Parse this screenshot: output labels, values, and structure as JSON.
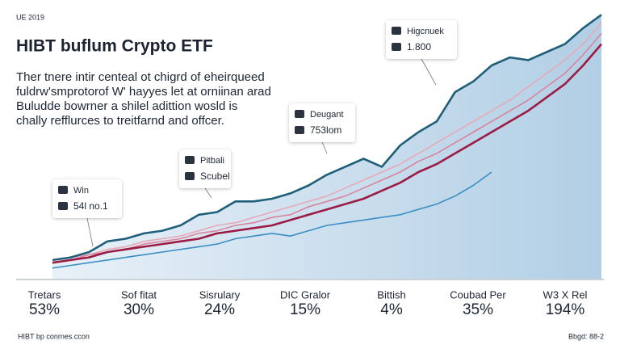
{
  "chart_data": {
    "type": "line",
    "kicker": "UE 2019",
    "title": "HIBT buflum Crypto ETF",
    "subtitle": [
      "Ther tnere intir centeal ot chigrd of eheirqueed",
      "fuldrw'smprotorof W' hayyes let at orniinan arad",
      "Buludde bowrner a shilel adittion wosld is",
      "chally refflurces to treitfarnd and offcer."
    ],
    "xlim": [
      0,
      30
    ],
    "ylim": [
      0,
      100
    ],
    "x": [
      0,
      1,
      2,
      3,
      4,
      5,
      6,
      7,
      8,
      9,
      10,
      11,
      12,
      13,
      14,
      15,
      16,
      17,
      18,
      19,
      20,
      21,
      22,
      23,
      24,
      25,
      26,
      27,
      28,
      29,
      30
    ],
    "area_color": "#b9d4e8",
    "series": [
      {
        "color": "#e7a9b8",
        "values": [
          7,
          8,
          9,
          11,
          12,
          14,
          15,
          16,
          18,
          20,
          21,
          23,
          25,
          27,
          29,
          31,
          34,
          37,
          40,
          43,
          47,
          51,
          55,
          59,
          63,
          67,
          72,
          77,
          82,
          88,
          96
        ]
      },
      {
        "color": "#d9849c",
        "values": [
          6,
          7,
          9,
          10,
          11,
          13,
          14,
          15,
          17,
          18,
          20,
          21,
          23,
          24,
          27,
          29,
          31,
          34,
          37,
          40,
          44,
          47,
          51,
          55,
          59,
          63,
          67,
          72,
          77,
          84,
          92
        ]
      },
      {
        "color": "#9b1b45",
        "values": [
          6,
          7,
          8,
          10,
          11,
          12,
          13,
          14,
          15,
          17,
          18,
          19,
          20,
          22,
          24,
          26,
          28,
          30,
          33,
          36,
          40,
          43,
          47,
          51,
          55,
          59,
          63,
          68,
          73,
          80,
          88
        ]
      },
      {
        "color": "#3a8fc4",
        "values": [
          4,
          5,
          6,
          7,
          8,
          9,
          10,
          11,
          12,
          13,
          15,
          16,
          17,
          16,
          18,
          20,
          21,
          22,
          23,
          24,
          26,
          28,
          31,
          35,
          40,
          null,
          null,
          null,
          null,
          null,
          null
        ]
      },
      {
        "color": "#1f5f7a",
        "values": [
          7,
          8,
          10,
          14,
          15,
          17,
          18,
          20,
          24,
          25,
          29,
          29,
          30,
          32,
          35,
          39,
          42,
          45,
          42,
          50,
          55,
          59,
          70,
          74,
          80,
          83,
          82,
          85,
          88,
          94,
          99
        ]
      }
    ],
    "annotations": [
      {
        "title": "Win",
        "text": "54l no.1"
      },
      {
        "title": "Pitbali",
        "text": "Scubel"
      },
      {
        "title": "Deugant",
        "text": "753lom"
      },
      {
        "title": "Higcnuek",
        "text": "1.800"
      }
    ],
    "stats": [
      {
        "label": "Tretars",
        "value": "53%"
      },
      {
        "label": "Sof fitat",
        "value": "30%"
      },
      {
        "label": "Sisrulary",
        "value": "24%"
      },
      {
        "label": "DIC Gralor",
        "value": "15%"
      },
      {
        "label": "Bittish",
        "value": "4%"
      },
      {
        "label": "Coubad Per",
        "value": "35%"
      },
      {
        "label": "W3 X Rel",
        "value": "194%"
      }
    ],
    "footer_left": "HIBT bp conrnes.ccon",
    "footer_right": "Bbgd: 88-2"
  }
}
